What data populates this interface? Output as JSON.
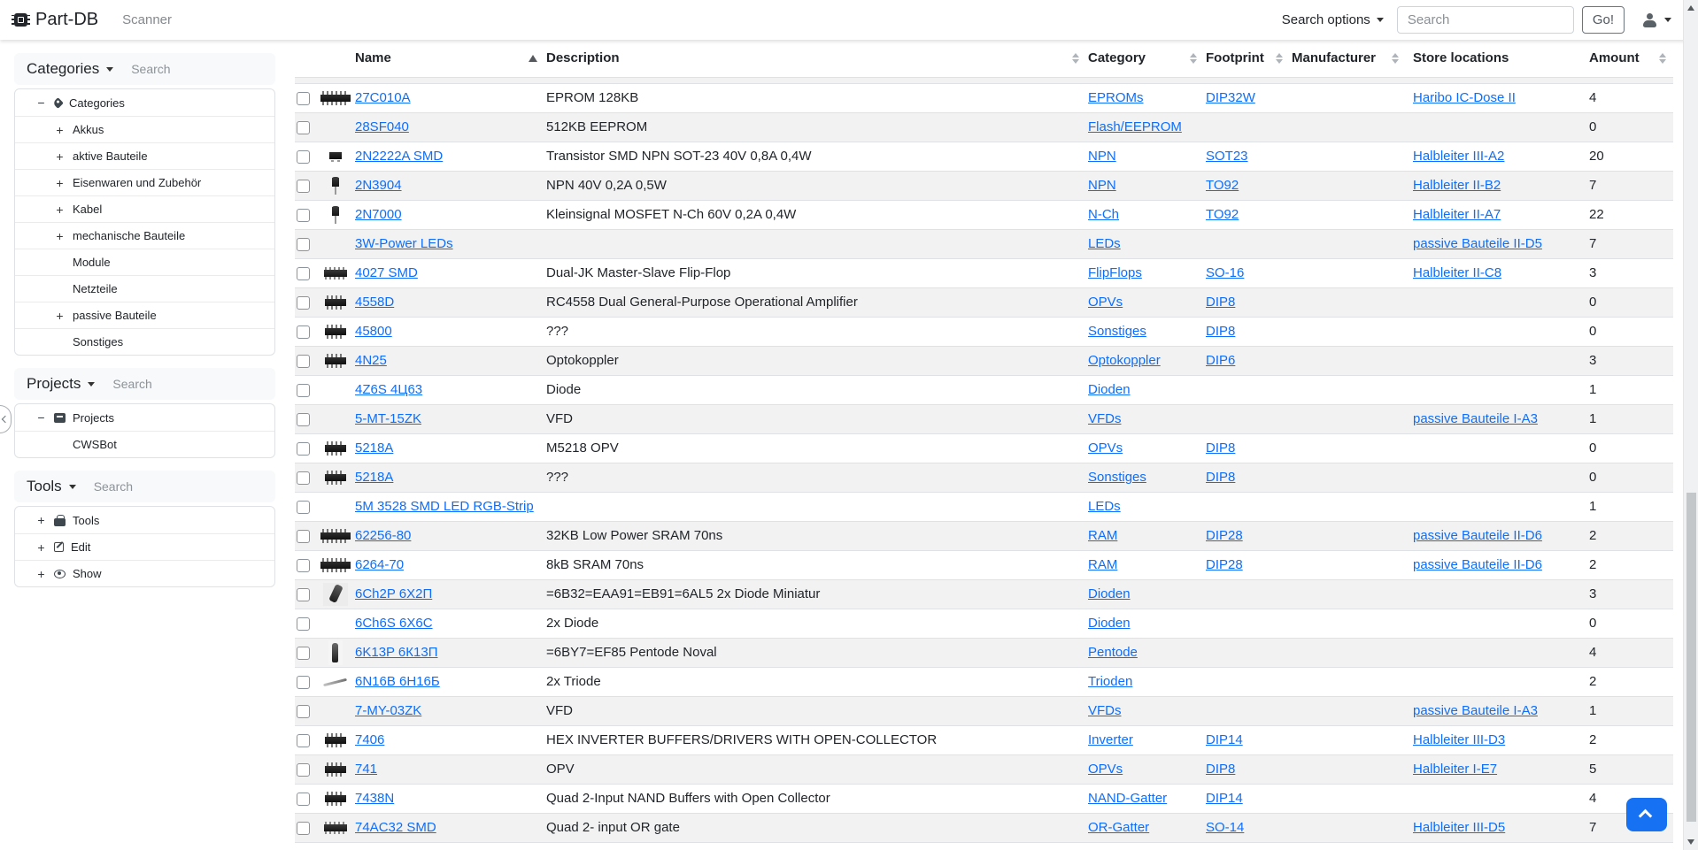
{
  "navbar": {
    "brand": "Part-DB",
    "brand_icon": "microchip-icon",
    "scanner_label": "Scanner",
    "search_options_label": "Search options",
    "search_placeholder": "Search",
    "go_label": "Go!",
    "user_icon": "person-icon"
  },
  "sidebar": {
    "collapse_icon": "chevron-left-icon",
    "panels": [
      {
        "title": "Categories",
        "search_placeholder": "Search",
        "tree": [
          {
            "toggle": "−",
            "icon": "tag-icon",
            "label": "Categories",
            "depth": 0
          },
          {
            "toggle": "+",
            "icon": "",
            "label": "Akkus",
            "depth": 1
          },
          {
            "toggle": "+",
            "icon": "",
            "label": "aktive Bauteile",
            "depth": 1
          },
          {
            "toggle": "+",
            "icon": "",
            "label": "Eisenwaren und Zubehör",
            "depth": 1
          },
          {
            "toggle": "+",
            "icon": "",
            "label": "Kabel",
            "depth": 1
          },
          {
            "toggle": "+",
            "icon": "",
            "label": "mechanische Bauteile",
            "depth": 1
          },
          {
            "toggle": "",
            "icon": "",
            "label": "Module",
            "depth": 1
          },
          {
            "toggle": "",
            "icon": "",
            "label": "Netzteile",
            "depth": 1
          },
          {
            "toggle": "+",
            "icon": "",
            "label": "passive Bauteile",
            "depth": 1
          },
          {
            "toggle": "",
            "icon": "",
            "label": "Sonstiges",
            "depth": 1
          }
        ]
      },
      {
        "title": "Projects",
        "search_placeholder": "Search",
        "tree": [
          {
            "toggle": "−",
            "icon": "inbox-icon",
            "label": "Projects",
            "depth": 0
          },
          {
            "toggle": "",
            "icon": "",
            "label": "CWSBot",
            "depth": 1
          }
        ]
      },
      {
        "title": "Tools",
        "search_placeholder": "Search",
        "tree": [
          {
            "toggle": "+",
            "icon": "toolbox-icon",
            "label": "Tools",
            "depth": 0
          },
          {
            "toggle": "+",
            "icon": "edit-icon",
            "label": "Edit",
            "depth": 0
          },
          {
            "toggle": "+",
            "icon": "eye-icon",
            "label": "Show",
            "depth": 0
          }
        ]
      }
    ]
  },
  "table": {
    "columns": [
      {
        "label": "",
        "sort": null,
        "key": "select"
      },
      {
        "label": "",
        "sort": null,
        "key": "thumb"
      },
      {
        "label": "Name",
        "sort": "asc",
        "key": "name"
      },
      {
        "label": "Description",
        "sort": "both",
        "key": "description"
      },
      {
        "label": "Category",
        "sort": "both",
        "key": "category"
      },
      {
        "label": "Footprint",
        "sort": "both",
        "key": "footprint"
      },
      {
        "label": "Manufacturer",
        "sort": "both",
        "key": "manufacturer"
      },
      {
        "label": "Store locations",
        "sort": null,
        "key": "store_location"
      },
      {
        "label": "Amount",
        "sort": "both",
        "key": "amount"
      }
    ],
    "rows": [
      {
        "name": "27C010A",
        "thumb": "dip-wide",
        "description": "EPROM 128KB",
        "category": "EPROMs",
        "footprint": "DIP32W",
        "manufacturer": "",
        "store_location": "Haribo IC-Dose II",
        "amount": "4"
      },
      {
        "name": "28SF040",
        "thumb": "",
        "description": "512KB EEPROM",
        "category": "Flash/EEPROM",
        "footprint": "",
        "manufacturer": "",
        "store_location": "",
        "amount": "0"
      },
      {
        "name": "2N2222A SMD",
        "thumb": "sot23",
        "description": "Transistor SMD NPN SOT-23 40V 0,8A 0,4W",
        "category": "NPN",
        "footprint": "SOT23",
        "manufacturer": "",
        "store_location": "Halbleiter III-A2",
        "amount": "20"
      },
      {
        "name": "2N3904",
        "thumb": "to92",
        "description": "NPN 40V 0,2A 0,5W",
        "category": "NPN",
        "footprint": "TO92",
        "manufacturer": "",
        "store_location": "Halbleiter II-B2",
        "amount": "7"
      },
      {
        "name": "2N7000",
        "thumb": "to92",
        "description": "Kleinsignal MOSFET N-Ch 60V 0,2A 0,4W",
        "category": "N-Ch",
        "footprint": "TO92",
        "manufacturer": "",
        "store_location": "Halbleiter II-A7",
        "amount": "22"
      },
      {
        "name": "3W-Power LEDs",
        "thumb": "",
        "description": "",
        "category": "LEDs",
        "footprint": "",
        "manufacturer": "",
        "store_location": "passive Bauteile II-D5",
        "amount": "7"
      },
      {
        "name": "4027 SMD",
        "thumb": "soic",
        "description": "Dual-JK Master-Slave Flip-Flop",
        "category": "FlipFlops",
        "footprint": "SO-16",
        "manufacturer": "",
        "store_location": "Halbleiter II-C8",
        "amount": "3"
      },
      {
        "name": "4558D",
        "thumb": "dip",
        "description": "RC4558 Dual General-Purpose Operational Amplifier",
        "category": "OPVs",
        "footprint": "DIP8",
        "manufacturer": "",
        "store_location": "",
        "amount": "0"
      },
      {
        "name": "45800",
        "thumb": "dip",
        "description": "???",
        "category": "Sonstiges",
        "footprint": "DIP8",
        "manufacturer": "",
        "store_location": "",
        "amount": "0"
      },
      {
        "name": "4N25",
        "thumb": "dip",
        "description": "Optokoppler",
        "category": "Optokoppler",
        "footprint": "DIP6",
        "manufacturer": "",
        "store_location": "",
        "amount": "3"
      },
      {
        "name": "4Z6S 4Ц63",
        "thumb": "",
        "description": "Diode",
        "category": "Dioden",
        "footprint": "",
        "manufacturer": "",
        "store_location": "",
        "amount": "1"
      },
      {
        "name": "5-MT-15ZK",
        "thumb": "",
        "description": "VFD",
        "category": "VFDs",
        "footprint": "",
        "manufacturer": "",
        "store_location": "passive Bauteile I-A3",
        "amount": "1"
      },
      {
        "name": "5218A",
        "thumb": "dip",
        "description": "M5218 OPV",
        "category": "OPVs",
        "footprint": "DIP8",
        "manufacturer": "",
        "store_location": "",
        "amount": "0"
      },
      {
        "name": "5218A",
        "thumb": "dip",
        "description": "???",
        "category": "Sonstiges",
        "footprint": "DIP8",
        "manufacturer": "",
        "store_location": "",
        "amount": "0"
      },
      {
        "name": "5M 3528 SMD LED RGB-Strip",
        "thumb": "",
        "description": "",
        "category": "LEDs",
        "footprint": "",
        "manufacturer": "",
        "store_location": "",
        "amount": "1"
      },
      {
        "name": "62256-80",
        "thumb": "dip-wide",
        "description": "32KB Low Power SRAM 70ns",
        "category": "RAM",
        "footprint": "DIP28",
        "manufacturer": "",
        "store_location": "passive Bauteile II-D6",
        "amount": "2"
      },
      {
        "name": "6264-70",
        "thumb": "dip-wide",
        "description": "8kB SRAM 70ns",
        "category": "RAM",
        "footprint": "DIP28",
        "manufacturer": "",
        "store_location": "passive Bauteile II-D6",
        "amount": "2"
      },
      {
        "name": "6Ch2P 6Х2П",
        "thumb": "tube-angled",
        "description": "=6B32=EAA91=EB91=6AL5 2x Diode Miniatur",
        "category": "Dioden",
        "footprint": "",
        "manufacturer": "",
        "store_location": "",
        "amount": "3"
      },
      {
        "name": "6Ch6S 6X6C",
        "thumb": "",
        "description": "2x Diode",
        "category": "Dioden",
        "footprint": "",
        "manufacturer": "",
        "store_location": "",
        "amount": "0"
      },
      {
        "name": "6K13P 6К13П",
        "thumb": "tube",
        "description": "=6BY7=EF85 Pentode Noval",
        "category": "Pentode",
        "footprint": "",
        "manufacturer": "",
        "store_location": "",
        "amount": "4"
      },
      {
        "name": "6N16B 6Н16Б",
        "thumb": "tube-small",
        "description": "2x Triode",
        "category": "Trioden",
        "footprint": "",
        "manufacturer": "",
        "store_location": "",
        "amount": "2"
      },
      {
        "name": "7-MY-03ZK",
        "thumb": "",
        "description": "VFD",
        "category": "VFDs",
        "footprint": "",
        "manufacturer": "",
        "store_location": "passive Bauteile I-A3",
        "amount": "1"
      },
      {
        "name": "7406",
        "thumb": "dip",
        "description": "HEX INVERTER BUFFERS/DRIVERS WITH OPEN-COLLECTOR",
        "category": "Inverter",
        "footprint": "DIP14",
        "manufacturer": "",
        "store_location": "Halbleiter III-D3",
        "amount": "2"
      },
      {
        "name": "741",
        "thumb": "dip",
        "description": "OPV",
        "category": "OPVs",
        "footprint": "DIP8",
        "manufacturer": "",
        "store_location": "Halbleiter I-E7",
        "amount": "5"
      },
      {
        "name": "7438N",
        "thumb": "dip",
        "description": "Quad 2-Input NAND Buffers with Open Collector",
        "category": "NAND-Gatter",
        "footprint": "DIP14",
        "manufacturer": "",
        "store_location": "",
        "amount": "4"
      },
      {
        "name": "74AC32 SMD",
        "thumb": "soic",
        "description": "Quad 2- input OR gate",
        "category": "OR-Gatter",
        "footprint": "SO-14",
        "manufacturer": "",
        "store_location": "Halbleiter III-D5",
        "amount": "7"
      }
    ]
  },
  "floating": {
    "scroll_top_icon": "chevron-up-icon"
  },
  "colors": {
    "link": "#0d6efd",
    "primary": "#1672f3",
    "stripe": "#f2f2f2",
    "border": "#dee2e6"
  }
}
